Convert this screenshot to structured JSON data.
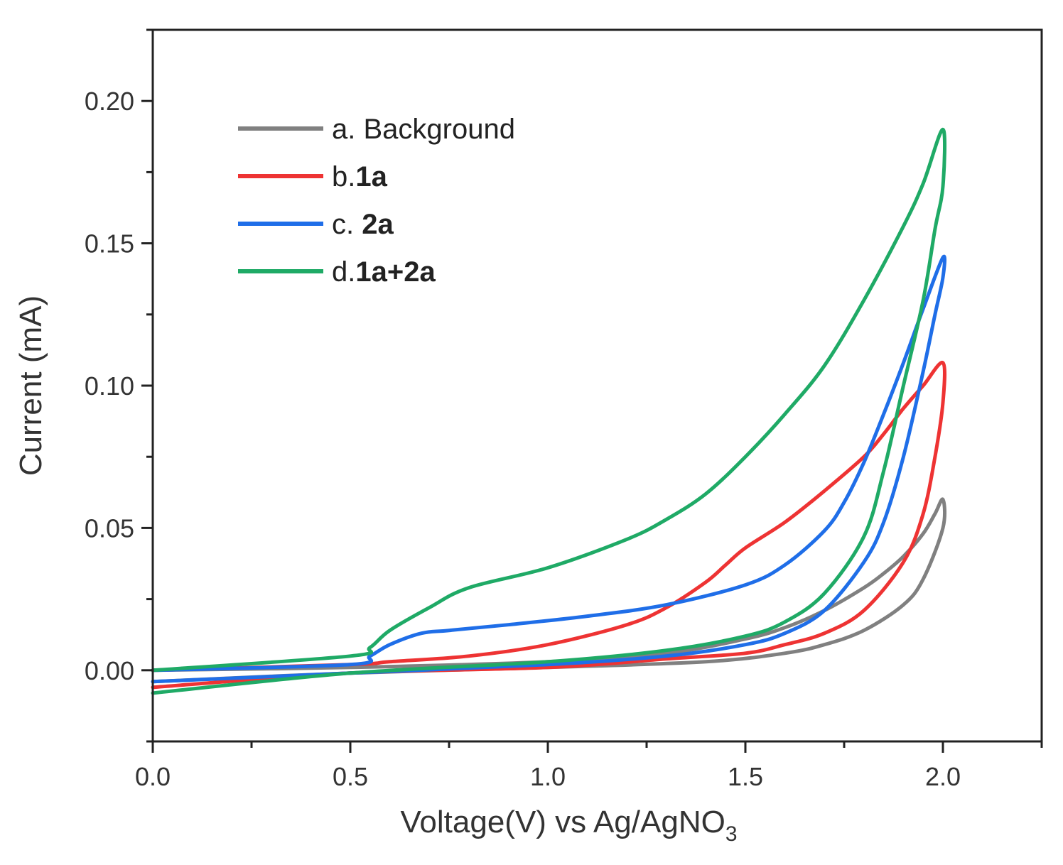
{
  "chart_data": {
    "type": "line",
    "title": "",
    "xlabel": "Voltage(V) vs Ag/AgNO",
    "xlabel_subscript": "3",
    "ylabel": "Current (mA)",
    "xlim": [
      0.0,
      2.25
    ],
    "ylim": [
      -0.025,
      0.225
    ],
    "xticks": [
      "0.0",
      "0.5",
      "1.0",
      "1.5",
      "2.0"
    ],
    "yticks": [
      "0.00",
      "0.05",
      "0.10",
      "0.15",
      "0.20"
    ],
    "legend_position": "top-left",
    "series": [
      {
        "name": "a. Background",
        "prefix": "a. ",
        "label": "Background",
        "bold": false,
        "color": "#808080",
        "x": [
          0.0,
          0.5,
          1.0,
          1.4,
          1.6,
          1.7,
          1.8,
          1.9,
          1.95,
          2.0,
          2.0,
          1.98,
          1.95,
          1.9,
          1.85,
          1.8,
          1.7,
          1.6,
          1.5,
          1.3,
          1.0,
          0.5,
          0.0
        ],
        "y": [
          -0.004,
          -0.001,
          0.001,
          0.003,
          0.006,
          0.009,
          0.014,
          0.023,
          0.032,
          0.05,
          0.06,
          0.055,
          0.048,
          0.04,
          0.034,
          0.029,
          0.021,
          0.015,
          0.011,
          0.006,
          0.003,
          0.001,
          0.0
        ]
      },
      {
        "name": "b.1a",
        "prefix": "b.",
        "label": "1a",
        "bold": true,
        "color": "#ee3333",
        "x": [
          0.0,
          0.5,
          1.0,
          1.3,
          1.5,
          1.6,
          1.7,
          1.8,
          1.9,
          1.95,
          1.98,
          2.0,
          2.0,
          1.95,
          1.9,
          1.85,
          1.8,
          1.7,
          1.6,
          1.5,
          1.45,
          1.4,
          1.3,
          1.2,
          1.0,
          0.8,
          0.6,
          0.5,
          0.0
        ],
        "y": [
          -0.006,
          -0.001,
          0.001,
          0.004,
          0.006,
          0.009,
          0.013,
          0.021,
          0.038,
          0.055,
          0.075,
          0.094,
          0.108,
          0.1,
          0.092,
          0.083,
          0.075,
          0.063,
          0.052,
          0.043,
          0.037,
          0.031,
          0.022,
          0.016,
          0.009,
          0.005,
          0.003,
          0.002,
          0.0
        ]
      },
      {
        "name": "c. 2a",
        "prefix": "c. ",
        "label": "2a",
        "bold": true,
        "color": "#1f6ee8",
        "x": [
          0.0,
          0.5,
          1.0,
          1.3,
          1.5,
          1.6,
          1.7,
          1.8,
          1.85,
          1.9,
          1.95,
          1.98,
          2.0,
          2.0,
          1.95,
          1.9,
          1.85,
          1.8,
          1.75,
          1.7,
          1.6,
          1.5,
          1.3,
          1.1,
          0.9,
          0.75,
          0.68,
          0.6,
          0.55,
          0.5,
          0.0
        ],
        "y": [
          -0.004,
          -0.001,
          0.002,
          0.005,
          0.009,
          0.013,
          0.021,
          0.038,
          0.052,
          0.075,
          0.105,
          0.125,
          0.138,
          0.145,
          0.127,
          0.108,
          0.09,
          0.073,
          0.059,
          0.049,
          0.037,
          0.03,
          0.023,
          0.019,
          0.016,
          0.014,
          0.013,
          0.009,
          0.005,
          0.002,
          0.0
        ]
      },
      {
        "name": "d.1a+2a",
        "prefix": "d.",
        "label": "1a+2a",
        "bold": true,
        "color": "#1faa66",
        "x": [
          0.0,
          0.5,
          1.0,
          1.3,
          1.5,
          1.6,
          1.7,
          1.8,
          1.85,
          1.9,
          1.95,
          1.98,
          2.0,
          2.0,
          1.95,
          1.9,
          1.8,
          1.7,
          1.6,
          1.5,
          1.4,
          1.3,
          1.2,
          1.0,
          0.8,
          0.7,
          0.6,
          0.55,
          0.5,
          0.0
        ],
        "y": [
          -0.008,
          -0.001,
          0.003,
          0.007,
          0.012,
          0.017,
          0.027,
          0.047,
          0.07,
          0.1,
          0.13,
          0.155,
          0.17,
          0.19,
          0.171,
          0.156,
          0.13,
          0.107,
          0.09,
          0.075,
          0.062,
          0.053,
          0.046,
          0.036,
          0.029,
          0.022,
          0.014,
          0.008,
          0.005,
          0.0
        ]
      }
    ]
  }
}
